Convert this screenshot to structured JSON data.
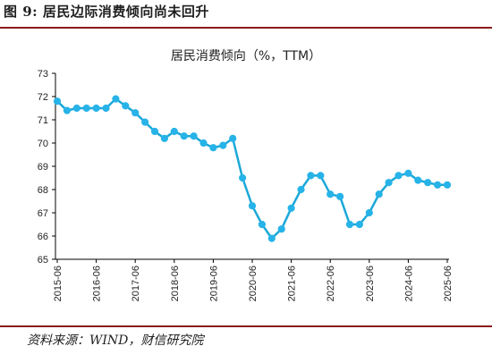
{
  "figure_title": "图 9:  居民边际消费倾向尚未回升",
  "source": "资料来源：WIND，财信研究院",
  "colors": {
    "line": "#1ba8d8",
    "marker": "#27b3e8",
    "axis": "#000000",
    "rule": "#8b1a1a"
  },
  "chart_data": {
    "type": "line",
    "title": "居民消费倾向（%，TTM）",
    "xlabel": "",
    "ylabel": "",
    "ylim": [
      65,
      73
    ],
    "yticks": [
      65,
      66,
      67,
      68,
      69,
      70,
      71,
      72,
      73
    ],
    "xticks": [
      "2015-06",
      "2016-06",
      "2017-06",
      "2018-06",
      "2019-06",
      "2020-06",
      "2021-06",
      "2022-06",
      "2023-06",
      "2024-06",
      "2025-06"
    ],
    "grid": false,
    "legend": "none",
    "x": [
      "2015-06",
      "2015-09",
      "2015-12",
      "2016-03",
      "2016-06",
      "2016-09",
      "2016-12",
      "2017-03",
      "2017-06",
      "2017-09",
      "2017-12",
      "2018-03",
      "2018-06",
      "2018-09",
      "2018-12",
      "2019-03",
      "2019-06",
      "2019-09",
      "2019-12",
      "2020-03",
      "2020-06",
      "2020-09",
      "2020-12",
      "2021-03",
      "2021-06",
      "2021-09",
      "2021-12",
      "2022-03",
      "2022-06",
      "2022-09",
      "2022-12",
      "2023-03",
      "2023-06",
      "2023-09",
      "2023-12",
      "2024-03",
      "2024-06",
      "2024-09",
      "2024-12",
      "2025-03",
      "2025-06"
    ],
    "series": [
      {
        "values": [
          71.8,
          71.4,
          71.5,
          71.5,
          71.5,
          71.5,
          71.9,
          71.6,
          71.3,
          70.9,
          70.5,
          70.2,
          70.5,
          70.3,
          70.3,
          70.0,
          69.8,
          69.9,
          70.2,
          68.5,
          67.3,
          66.5,
          65.9,
          66.3,
          67.2,
          68.0,
          68.6,
          68.6,
          67.8,
          67.7,
          66.5,
          66.5,
          67.0,
          67.8,
          68.3,
          68.6,
          68.7,
          68.4,
          68.3,
          68.2,
          68.2
        ]
      }
    ]
  }
}
